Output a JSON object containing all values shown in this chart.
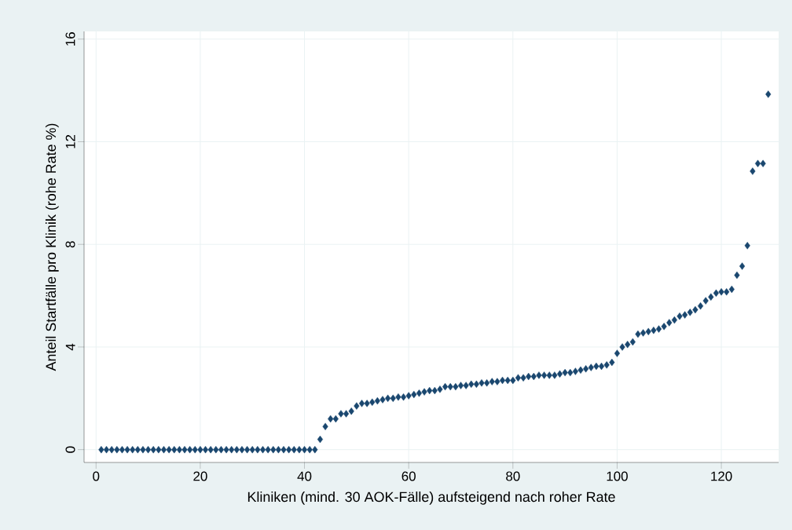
{
  "chart_data": {
    "type": "scatter",
    "xlabel": "Kliniken (mind. 30 AOK-Fälle) aufsteigend nach roher Rate",
    "ylabel": "Anteil Startfälle pro Klinik (rohe Rate %)",
    "x": [
      1,
      2,
      3,
      4,
      5,
      6,
      7,
      8,
      9,
      10,
      11,
      12,
      13,
      14,
      15,
      16,
      17,
      18,
      19,
      20,
      21,
      22,
      23,
      24,
      25,
      26,
      27,
      28,
      29,
      30,
      31,
      32,
      33,
      34,
      35,
      36,
      37,
      38,
      39,
      40,
      41,
      42,
      43,
      44,
      45,
      46,
      47,
      48,
      49,
      50,
      51,
      52,
      53,
      54,
      55,
      56,
      57,
      58,
      59,
      60,
      61,
      62,
      63,
      64,
      65,
      66,
      67,
      68,
      69,
      70,
      71,
      72,
      73,
      74,
      75,
      76,
      77,
      78,
      79,
      80,
      81,
      82,
      83,
      84,
      85,
      86,
      87,
      88,
      89,
      90,
      91,
      92,
      93,
      94,
      95,
      96,
      97,
      98,
      99,
      100,
      101,
      102,
      103,
      104,
      105,
      106,
      107,
      108,
      109,
      110,
      111,
      112,
      113,
      114,
      115,
      116,
      117,
      118,
      119,
      120,
      121,
      122,
      123,
      124,
      125,
      126,
      127,
      128,
      129
    ],
    "values": [
      0,
      0,
      0,
      0,
      0,
      0,
      0,
      0,
      0,
      0,
      0,
      0,
      0,
      0,
      0,
      0,
      0,
      0,
      0,
      0,
      0,
      0,
      0,
      0,
      0,
      0,
      0,
      0,
      0,
      0,
      0,
      0,
      0,
      0,
      0,
      0,
      0,
      0,
      0,
      0,
      0,
      0,
      0.4,
      0.9,
      1.2,
      1.2,
      1.4,
      1.4,
      1.5,
      1.7,
      1.8,
      1.8,
      1.85,
      1.9,
      1.95,
      2.0,
      2.0,
      2.05,
      2.05,
      2.1,
      2.15,
      2.2,
      2.25,
      2.3,
      2.3,
      2.35,
      2.45,
      2.45,
      2.45,
      2.5,
      2.5,
      2.55,
      2.55,
      2.6,
      2.6,
      2.65,
      2.65,
      2.7,
      2.7,
      2.7,
      2.8,
      2.8,
      2.85,
      2.85,
      2.9,
      2.9,
      2.9,
      2.9,
      2.95,
      3.0,
      3.0,
      3.05,
      3.1,
      3.15,
      3.2,
      3.25,
      3.25,
      3.3,
      3.4,
      3.75,
      4.0,
      4.1,
      4.2,
      4.5,
      4.55,
      4.6,
      4.65,
      4.7,
      4.8,
      4.95,
      5.05,
      5.2,
      5.25,
      5.35,
      5.45,
      5.6,
      5.8,
      5.95,
      6.1,
      6.15,
      6.15,
      6.25,
      6.8,
      7.15,
      7.95,
      10.85,
      11.15,
      11.15,
      13.85
    ],
    "color": "#1a476f",
    "marker": "diamond",
    "grid": true,
    "xlim": [
      -2.3,
      131
    ],
    "xticks": [
      0,
      20,
      40,
      60,
      80,
      100,
      120
    ],
    "ylim": [
      -0.5,
      16.3
    ],
    "yticks": [
      0,
      4,
      8,
      12,
      16
    ]
  }
}
